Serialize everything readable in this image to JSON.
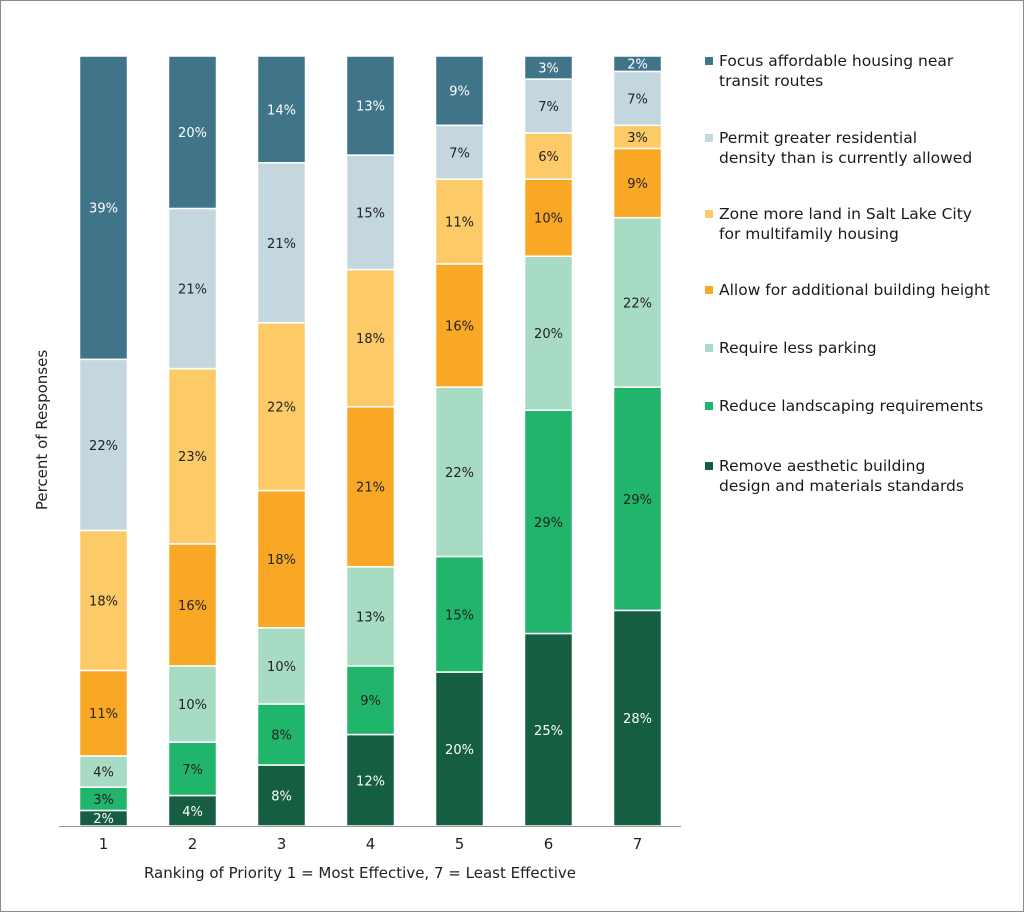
{
  "chart_data": {
    "type": "bar",
    "stacked": true,
    "xlabel": "Ranking of Priority 1 = Most Effective, 7 = Least Effective",
    "ylabel": "Percent of Responses",
    "categories": [
      "1",
      "2",
      "3",
      "4",
      "5",
      "6",
      "7"
    ],
    "legend_position": "right",
    "series": [
      {
        "name": "Remove aesthetic building design and materials standards",
        "color": "#165e41",
        "values": [
          2,
          4,
          8,
          12,
          20,
          25,
          28
        ],
        "labels": [
          "2%",
          "4%",
          "8%",
          "12%",
          "20%",
          "25%",
          "28%"
        ]
      },
      {
        "name": "Reduce landscaping requirements",
        "color": "#21b46b",
        "values": [
          3,
          7,
          8,
          9,
          15,
          29,
          29
        ],
        "labels": [
          "3%",
          "7%",
          "8%",
          "9%",
          "15%",
          "29%",
          "29%"
        ]
      },
      {
        "name": "Require less parking",
        "color": "#a8dbc4",
        "values": [
          4,
          10,
          10,
          13,
          22,
          20,
          22
        ],
        "labels": [
          "4%",
          "10%",
          "10%",
          "13%",
          "22%",
          "20%",
          "22%"
        ]
      },
      {
        "name": "Allow for additional building height",
        "color": "#f9a825",
        "values": [
          11,
          16,
          18,
          21,
          16,
          10,
          9
        ],
        "labels": [
          "11%",
          "16%",
          "18%",
          "21%",
          "16%",
          "10%",
          "9%"
        ]
      },
      {
        "name": "Zone more land in Salt Lake City for multifamily housing",
        "color": "#fcca67",
        "values": [
          18,
          23,
          22,
          18,
          11,
          6,
          3
        ],
        "labels": [
          "18%",
          "23%",
          "22%",
          "18%",
          "11%",
          "6%",
          "3%"
        ]
      },
      {
        "name": "Permit greater residential density than is currently allowed",
        "color": "#c5d7de",
        "values": [
          22,
          21,
          21,
          15,
          7,
          7,
          7
        ],
        "labels": [
          "22%",
          "21%",
          "21%",
          "15%",
          "7%",
          "7%",
          "7%"
        ]
      },
      {
        "name": "Focus affordable housing near transit routes",
        "color": "#3f7489",
        "values": [
          39,
          20,
          14,
          13,
          9,
          3,
          2
        ],
        "labels": [
          "39%",
          "20%",
          "14%",
          "13%",
          "9%",
          "3%",
          "2%"
        ]
      }
    ]
  },
  "legend": [
    {
      "lines": [
        "Focus affordable housing near",
        "transit routes"
      ],
      "color": "#3f7489"
    },
    {
      "lines": [
        "Permit greater residential",
        "density than is currently allowed"
      ],
      "color": "#c5d7de"
    },
    {
      "lines": [
        "Zone more land in Salt Lake City",
        "for multifamily housing"
      ],
      "color": "#fcca67"
    },
    {
      "lines": [
        "Allow for additional building height"
      ],
      "color": "#f9a825"
    },
    {
      "lines": [
        "Require less parking"
      ],
      "color": "#a8dbc4"
    },
    {
      "lines": [
        "Reduce landscaping requirements"
      ],
      "color": "#21b46b"
    },
    {
      "lines": [
        "Remove aesthetic building",
        "design and materials standards"
      ],
      "color": "#165e41"
    }
  ]
}
